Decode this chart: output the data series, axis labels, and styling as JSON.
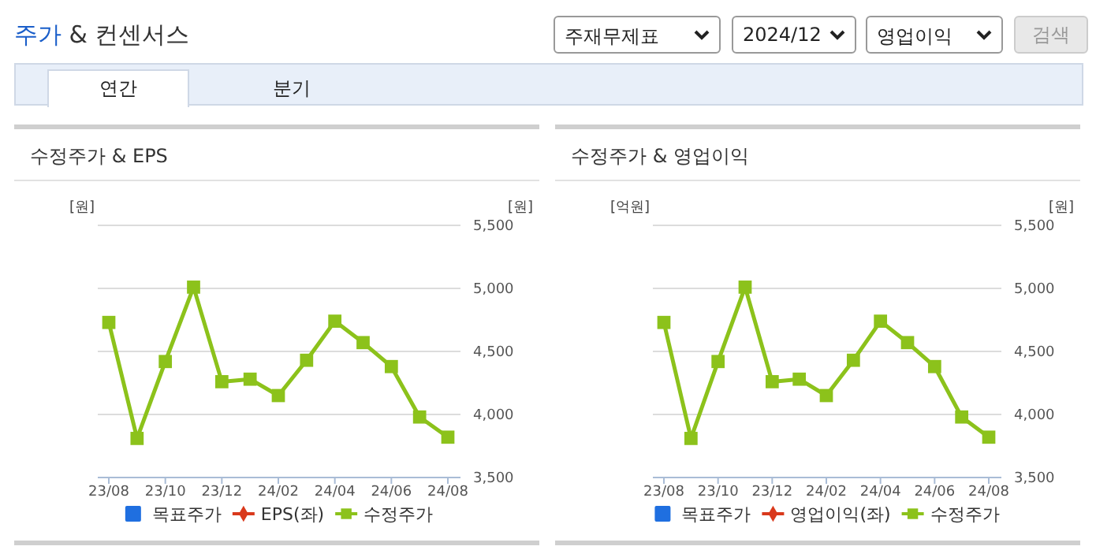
{
  "chart_data": [
    {
      "type": "other",
      "title": "주가 & 컨센서스",
      "annotations": [
        "주재무제표",
        "2024/12",
        "영업이익",
        "검색",
        "연간",
        "분기"
      ]
    },
    {
      "type": "line",
      "title": "수정주가 & EPS",
      "ylabel": "[원]",
      "y2label": "[원]",
      "categories": [
        "23/08",
        null,
        "23/10",
        null,
        "23/12",
        null,
        "24/02",
        null,
        "24/04",
        null,
        "24/06",
        null,
        "24/08"
      ],
      "y2lim": [
        3500,
        5500
      ],
      "y2ticks": [
        {
          "value": 3500,
          "label": "3,500"
        },
        {
          "value": 4000,
          "label": "4,000"
        },
        {
          "value": 4500,
          "label": "4,500"
        },
        {
          "value": 5000,
          "label": "5,000"
        },
        {
          "value": 5500,
          "label": "5,500"
        }
      ],
      "grid": true,
      "legend": "bottom",
      "series": [
        {
          "name": "목표주가",
          "type": "bar",
          "color": "#1f6fe0",
          "values": [
            null,
            null,
            null,
            null,
            null,
            null,
            null,
            null,
            null,
            null,
            null,
            null,
            null
          ]
        },
        {
          "name": "EPS(좌)",
          "type": "line",
          "marker": "diamond",
          "color": "#d9391c",
          "values": [
            null,
            null,
            null,
            null,
            null,
            null,
            null,
            null,
            null,
            null,
            null,
            null,
            null
          ]
        },
        {
          "name": "수정주가",
          "type": "line",
          "marker": "square",
          "axis": "y2",
          "color": "#8cc21b",
          "values": [
            4730,
            3810,
            4420,
            5010,
            4260,
            4280,
            4150,
            4430,
            4740,
            4570,
            4380,
            3980,
            3820
          ]
        }
      ]
    },
    {
      "type": "line",
      "title": "수정주가 & 영업이익",
      "ylabel": "[억원]",
      "y2label": "[원]",
      "categories": [
        "23/08",
        null,
        "23/10",
        null,
        "23/12",
        null,
        "24/02",
        null,
        "24/04",
        null,
        "24/06",
        null,
        "24/08"
      ],
      "y2lim": [
        3500,
        5500
      ],
      "y2ticks": [
        {
          "value": 3500,
          "label": "3,500"
        },
        {
          "value": 4000,
          "label": "4,000"
        },
        {
          "value": 4500,
          "label": "4,500"
        },
        {
          "value": 5000,
          "label": "5,000"
        },
        {
          "value": 5500,
          "label": "5,500"
        }
      ],
      "grid": true,
      "legend": "bottom",
      "series": [
        {
          "name": "목표주가",
          "type": "bar",
          "color": "#1f6fe0",
          "values": [
            null,
            null,
            null,
            null,
            null,
            null,
            null,
            null,
            null,
            null,
            null,
            null,
            null
          ]
        },
        {
          "name": "영업이익(좌)",
          "type": "line",
          "marker": "diamond",
          "color": "#d9391c",
          "values": [
            null,
            null,
            null,
            null,
            null,
            null,
            null,
            null,
            null,
            null,
            null,
            null,
            null
          ]
        },
        {
          "name": "수정주가",
          "type": "line",
          "marker": "square",
          "axis": "y2",
          "color": "#8cc21b",
          "values": [
            4730,
            3810,
            4420,
            5010,
            4260,
            4280,
            4150,
            4430,
            4740,
            4570,
            4380,
            3980,
            3820
          ]
        }
      ]
    }
  ]
}
